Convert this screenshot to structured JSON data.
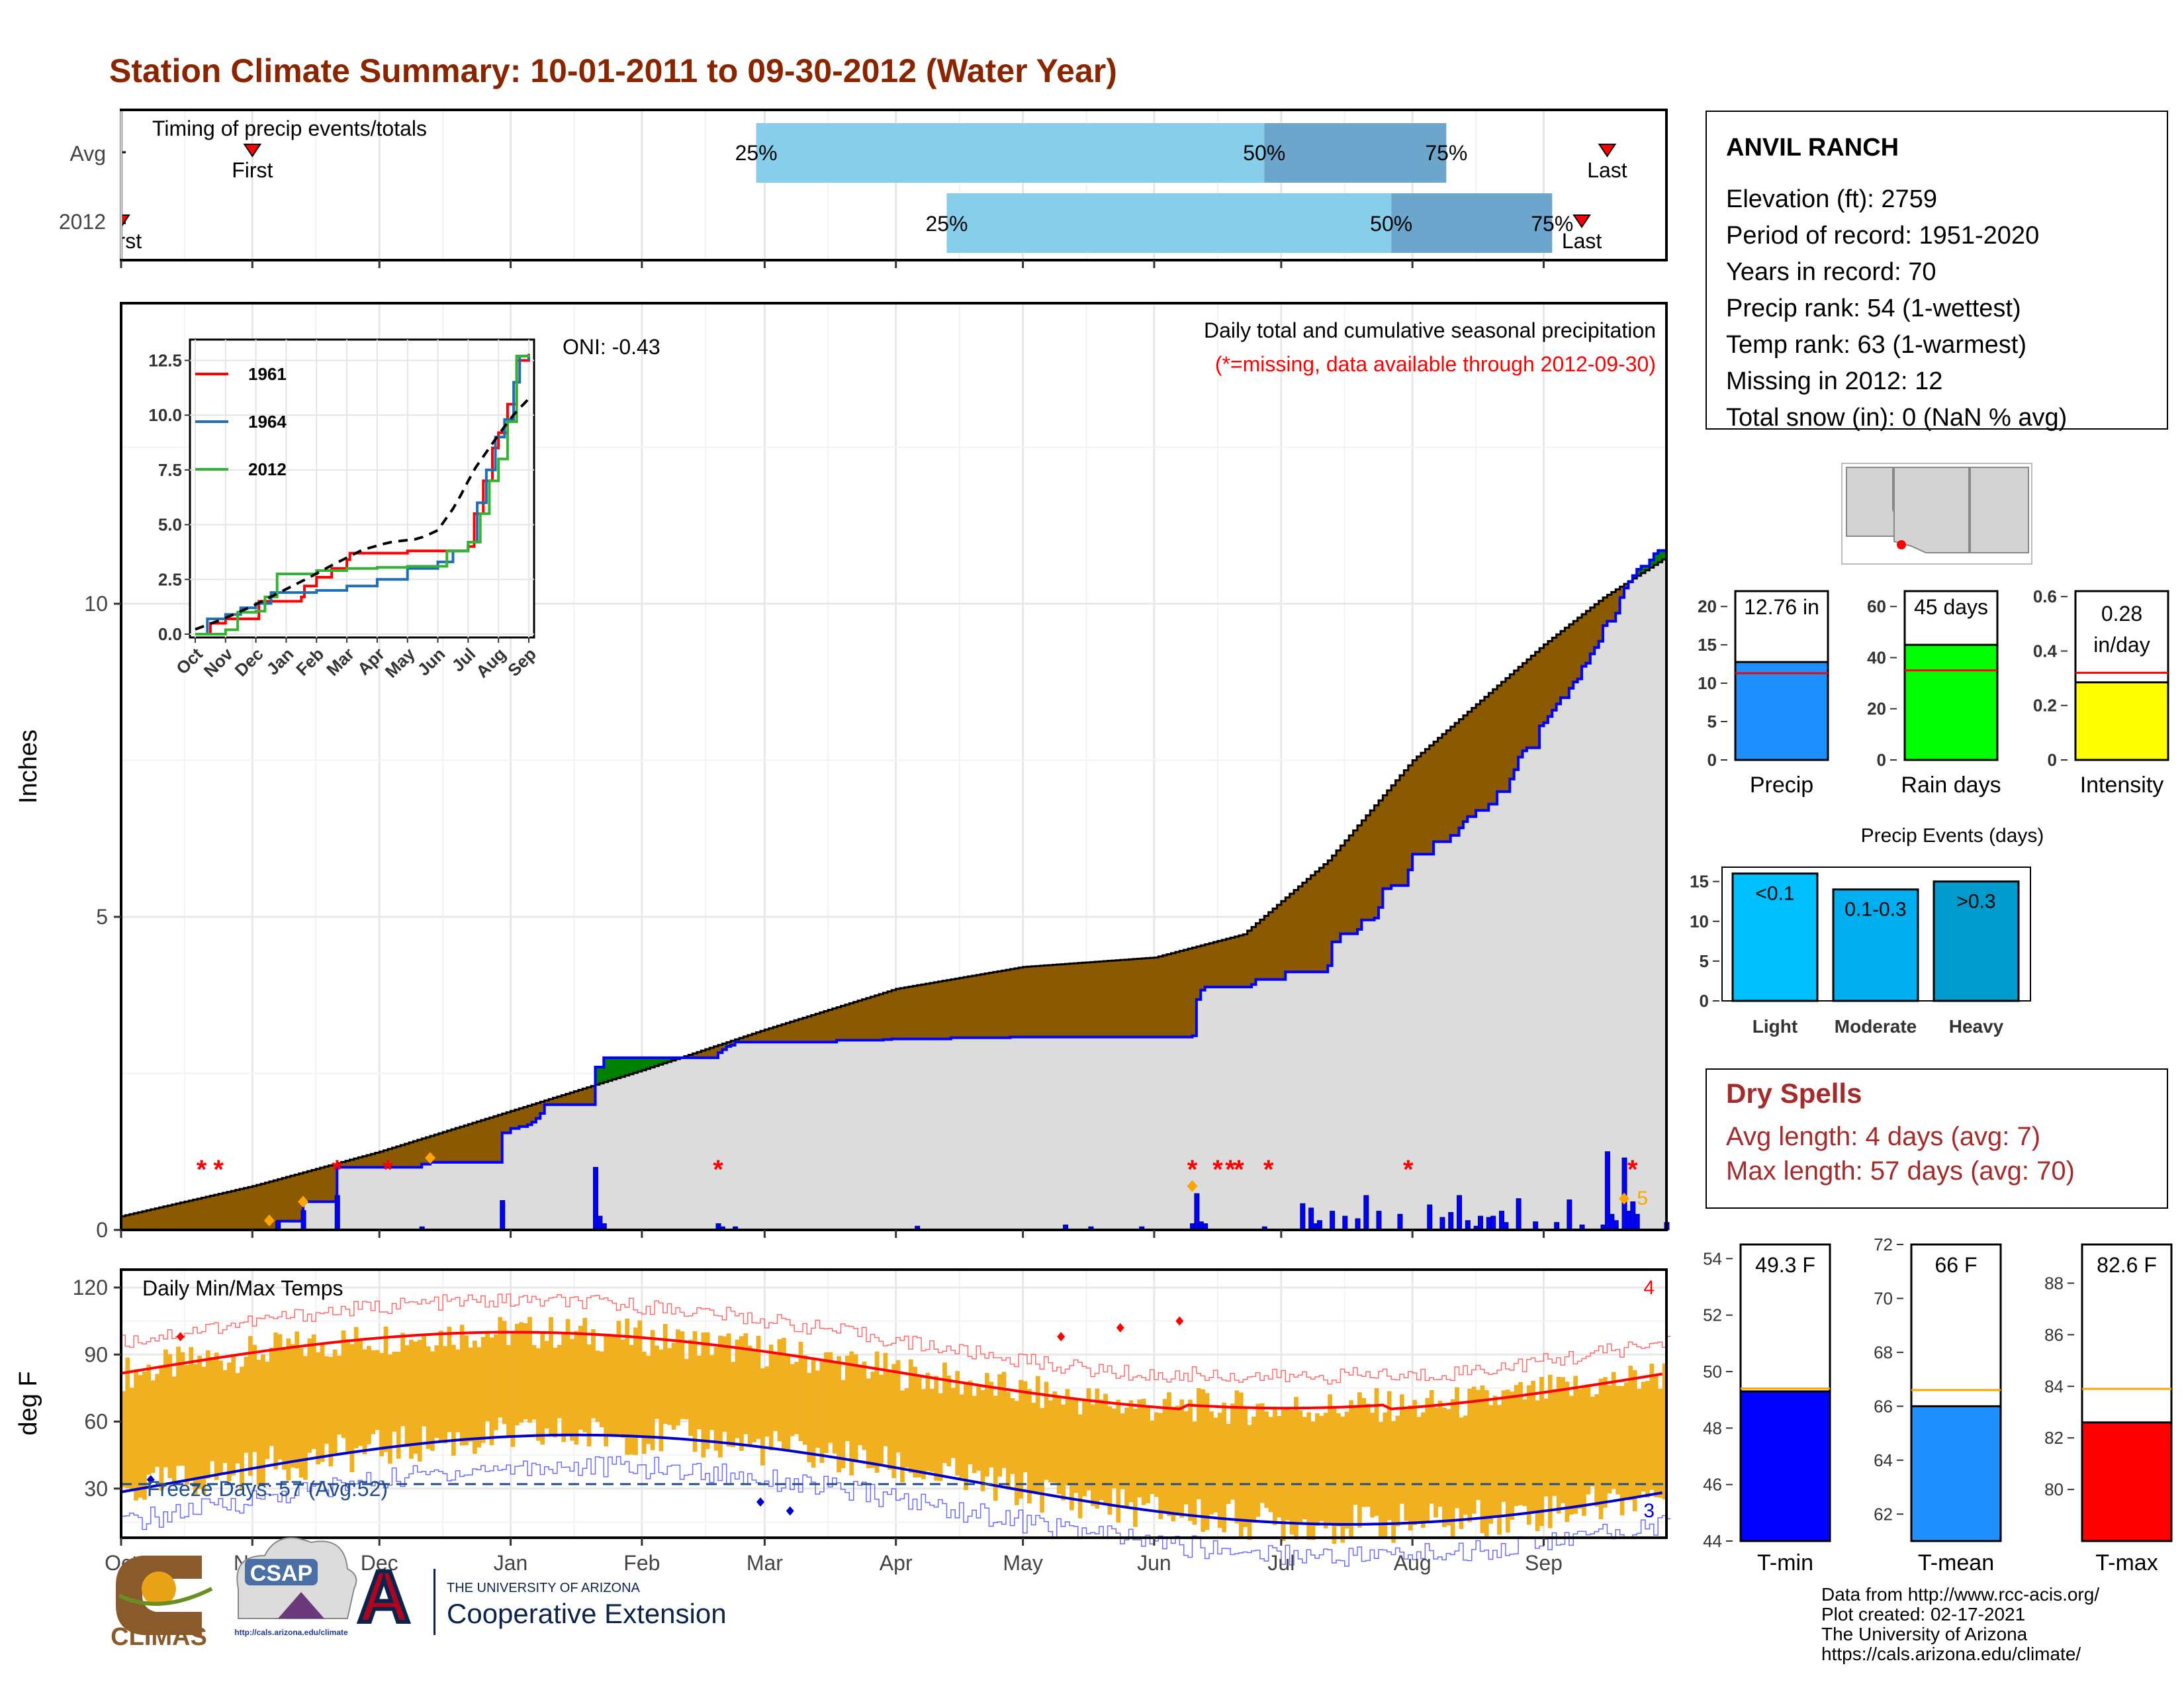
{
  "title": "Station Climate Summary: 10-01-2011 to 09-30-2012 (Water Year)",
  "colors": {
    "title": "#8B2500",
    "surplus": "#008000",
    "deficit": "#8B5A00",
    "cum_avg_fill": "#DCDCDC",
    "daily_bar": "#0000FF",
    "temp_bar": "#F0B020",
    "tmax_avg": "#FF0000",
    "tmin_avg": "#0000CD",
    "light": "#00BFFF",
    "moderate": "#00AEEF",
    "heavy": "#009ACD"
  },
  "timing_panel": {
    "label": "Timing of precip events/totals",
    "rows": [
      {
        "name": "Avg",
        "first_label": "First",
        "first_day": 31,
        "p25": 150,
        "p50": 270,
        "p75": 313,
        "last_label": "Last",
        "last_day": 351
      },
      {
        "name": "2012",
        "first_label": "First",
        "first_day": 0,
        "p25": 195,
        "p50": 300,
        "p75": 338,
        "last_label": "Last",
        "last_day": 345
      }
    ],
    "p25_label": "25%",
    "p50_label": "50%",
    "p75_label": "75%"
  },
  "precip_panel": {
    "ylabel": "Inches",
    "yticks": [
      0,
      5,
      10
    ],
    "title": "Daily total and cumulative seasonal precipitation",
    "missing_note": "(*=missing, data available through 2012-09-30)",
    "oni": "ONI: -0.43",
    "right_count": "5",
    "missing_stars_days": [
      19,
      23,
      51,
      63,
      141,
      253,
      259,
      262,
      264,
      271,
      304,
      357
    ],
    "cumulative_2012": [
      [
        0,
        0
      ],
      [
        36,
        0
      ],
      [
        37,
        0.14
      ],
      [
        42,
        0.14
      ],
      [
        43,
        0.45
      ],
      [
        50,
        0.45
      ],
      [
        51,
        1.0
      ],
      [
        70,
        1.0
      ],
      [
        71,
        1.05
      ],
      [
        72,
        1.05
      ],
      [
        73,
        1.08
      ],
      [
        89,
        1.08
      ],
      [
        90,
        1.55
      ],
      [
        91,
        1.55
      ],
      [
        92,
        1.62
      ],
      [
        93,
        1.62
      ],
      [
        94,
        1.65
      ],
      [
        95,
        1.65
      ],
      [
        96,
        1.68
      ],
      [
        97,
        1.72
      ],
      [
        98,
        1.78
      ],
      [
        99,
        1.86
      ],
      [
        100,
        2.0
      ],
      [
        111,
        2.0
      ],
      [
        112,
        2.6
      ],
      [
        113,
        2.6
      ],
      [
        114,
        2.75
      ],
      [
        140,
        2.75
      ],
      [
        141,
        2.83
      ],
      [
        142,
        2.88
      ],
      [
        143,
        2.93
      ],
      [
        144,
        2.95
      ],
      [
        145,
        3.0
      ],
      [
        152,
        3.0
      ],
      [
        153,
        3.0
      ],
      [
        168,
        3.0
      ],
      [
        169,
        3.03
      ],
      [
        180,
        3.04
      ],
      [
        182,
        3.05
      ],
      [
        196,
        3.07
      ],
      [
        210,
        3.08
      ],
      [
        228,
        3.08
      ],
      [
        252,
        3.08
      ],
      [
        253,
        3.1
      ],
      [
        254,
        3.68
      ],
      [
        255,
        3.83
      ],
      [
        256,
        3.88
      ],
      [
        267,
        3.92
      ],
      [
        268,
        4.0
      ],
      [
        275,
        4.12
      ],
      [
        285,
        4.22
      ],
      [
        286,
        4.6
      ],
      [
        287,
        4.6
      ],
      [
        288,
        4.73
      ],
      [
        290,
        4.73
      ],
      [
        292,
        4.8
      ],
      [
        293,
        4.95
      ],
      [
        296,
        4.98
      ],
      [
        297,
        5.15
      ],
      [
        298,
        5.45
      ],
      [
        300,
        5.5
      ],
      [
        304,
        5.75
      ],
      [
        305,
        6.0
      ],
      [
        308,
        6.0
      ],
      [
        310,
        6.2
      ],
      [
        314,
        6.3
      ],
      [
        316,
        6.42
      ],
      [
        317,
        6.52
      ],
      [
        318,
        6.6
      ],
      [
        320,
        6.7
      ],
      [
        323,
        6.8
      ],
      [
        325,
        7.0
      ],
      [
        328,
        7.2
      ],
      [
        329,
        7.35
      ],
      [
        330,
        7.55
      ],
      [
        331,
        7.65
      ],
      [
        332,
        7.7
      ],
      [
        334,
        7.7
      ],
      [
        335,
        8.05
      ],
      [
        336,
        8.1
      ],
      [
        337,
        8.2
      ],
      [
        338,
        8.3
      ],
      [
        339,
        8.4
      ],
      [
        340,
        8.5
      ],
      [
        342,
        8.65
      ],
      [
        343,
        8.75
      ],
      [
        344,
        8.8
      ],
      [
        345,
        9.0
      ],
      [
        346,
        9.05
      ],
      [
        347,
        9.2
      ],
      [
        348,
        9.3
      ],
      [
        349,
        9.4
      ],
      [
        350,
        9.65
      ],
      [
        351,
        9.72
      ],
      [
        353,
        9.85
      ],
      [
        354,
        10.1
      ],
      [
        355,
        10.25
      ],
      [
        356,
        10.35
      ],
      [
        357,
        10.45
      ],
      [
        358,
        10.55
      ],
      [
        359,
        10.6
      ],
      [
        361,
        10.7
      ],
      [
        362,
        10.8
      ],
      [
        363,
        10.85
      ],
      [
        365,
        10.85
      ]
    ],
    "daily_bars": [
      [
        37,
        0.14
      ],
      [
        43,
        0.31
      ],
      [
        51,
        0.55
      ],
      [
        71,
        0.05
      ],
      [
        90,
        0.47
      ],
      [
        112,
        1.0
      ],
      [
        113,
        0.22
      ],
      [
        114,
        0.1
      ],
      [
        141,
        0.1
      ],
      [
        142,
        0.05
      ],
      [
        145,
        0.05
      ],
      [
        188,
        0.06
      ],
      [
        223,
        0.08
      ],
      [
        229,
        0.05
      ],
      [
        241,
        0.05
      ],
      [
        253,
        0.1
      ],
      [
        254,
        0.58
      ],
      [
        255,
        0.13
      ],
      [
        256,
        0.1
      ],
      [
        270,
        0.05
      ],
      [
        279,
        0.42
      ],
      [
        281,
        0.35
      ],
      [
        282,
        0.1
      ],
      [
        283,
        0.15
      ],
      [
        286,
        0.3
      ],
      [
        289,
        0.22
      ],
      [
        292,
        0.18
      ],
      [
        294,
        0.55
      ],
      [
        297,
        0.3
      ],
      [
        302,
        0.25
      ],
      [
        309,
        0.4
      ],
      [
        312,
        0.2
      ],
      [
        314,
        0.28
      ],
      [
        316,
        0.55
      ],
      [
        318,
        0.15
      ],
      [
        320,
        0.06
      ],
      [
        321,
        0.22
      ],
      [
        323,
        0.2
      ],
      [
        324,
        0.22
      ],
      [
        326,
        0.3
      ],
      [
        327,
        0.12
      ],
      [
        330,
        0.5
      ],
      [
        334,
        0.13
      ],
      [
        339,
        0.12
      ],
      [
        342,
        0.48
      ],
      [
        345,
        0.08
      ],
      [
        350,
        0.08
      ],
      [
        351,
        1.25
      ],
      [
        352,
        0.25
      ],
      [
        353,
        0.15
      ],
      [
        355,
        1.15
      ],
      [
        356,
        0.3
      ],
      [
        357,
        0.45
      ],
      [
        358,
        0.25
      ],
      [
        365,
        0.12
      ]
    ],
    "diamonds_days": [
      35,
      43,
      73,
      253,
      355
    ],
    "diamonds_y": [
      0.15,
      0.45,
      1.15,
      0.7,
      0.5
    ]
  },
  "inset_chart": {
    "yticks": [
      "12.5",
      "10.0",
      "7.5",
      "5.0",
      "2.5",
      "0.0"
    ],
    "months": [
      "Oct",
      "Nov",
      "Dec",
      "Jan",
      "Feb",
      "Mar",
      "Apr",
      "May",
      "Jun",
      "Jul",
      "Aug",
      "Sep"
    ],
    "legend": [
      {
        "name": "1961",
        "color": "#FF0000"
      },
      {
        "name": "1964",
        "color": "#1E6FB5"
      },
      {
        "name": "2012",
        "color": "#32B432"
      }
    ]
  },
  "temp_panel": {
    "label": "Daily Min/Max Temps",
    "ylabel": "deg F",
    "yticks": [
      30,
      60,
      90,
      120
    ],
    "freeze_label": "Freeze Days: 57 (Avg:52)",
    "freeze_line": 32,
    "max_count": "4",
    "min_count": "3"
  },
  "x_months": [
    "Oct",
    "Nov",
    "Dec",
    "Jan",
    "Feb",
    "Mar",
    "Apr",
    "May",
    "Jun",
    "Jul",
    "Aug",
    "Sep"
  ],
  "station_info": {
    "name": "ANVIL RANCH",
    "lines": [
      "Elevation (ft): 2759",
      "Period of record: 1951-2020",
      "Years in record: 70",
      "Precip rank: 54 (1-wettest)",
      "Temp rank: 63 (1-warmest)",
      "Missing in 2012: 12",
      "Total snow (in): 0 (NaN % avg)"
    ]
  },
  "summary_bars": [
    {
      "label": "Precip",
      "value_label": "12.76 in",
      "value": 12.76,
      "avg": 11.3,
      "ymax": 22,
      "ticks": [
        0,
        5,
        10,
        15,
        20
      ],
      "color": "#1E90FF"
    },
    {
      "label": "Rain days",
      "value_label": "45 days",
      "value": 45,
      "avg": 35,
      "ymax": 66,
      "ticks": [
        0,
        20,
        40,
        60
      ],
      "color": "#00FF00"
    },
    {
      "label": "Intensity",
      "value_label_1": "0.28",
      "value_label_2": "in/day",
      "value": 0.285,
      "avg": 0.32,
      "ymax": 0.62,
      "ticks": [
        0.0,
        0.2,
        0.4,
        0.6
      ],
      "color": "#FFFF00"
    }
  ],
  "precip_events": {
    "title": "Precip Events (days)",
    "ticks": [
      0,
      5,
      10,
      15
    ],
    "bars": [
      {
        "label": "Light",
        "value": 16,
        "inside": "<0.1"
      },
      {
        "label": "Moderate",
        "value": 14,
        "inside": "0.1-0.3"
      },
      {
        "label": "Heavy",
        "value": 15,
        "inside": ">0.3"
      }
    ]
  },
  "dry_spells": {
    "title": "Dry Spells",
    "avg_line": "Avg length: 4 days (avg: 7)",
    "max_line": "Max length: 57 days (avg: 70)"
  },
  "temp_bars": [
    {
      "label": "T-min",
      "value_label": "49.3 F",
      "value": 49.3,
      "avg": 49.4,
      "ymin": 44,
      "ymax": 54.5,
      "ticks": [
        44,
        46,
        48,
        50,
        52,
        54
      ],
      "color": "#0000FF"
    },
    {
      "label": "T-mean",
      "value_label": "66 F",
      "value": 66.0,
      "avg": 66.6,
      "ymin": 61,
      "ymax": 72,
      "ticks": [
        62,
        64,
        66,
        68,
        70,
        72
      ],
      "color": "#1E90FF"
    },
    {
      "label": "T-max",
      "value_label": "82.6 F",
      "value": 82.6,
      "avg": 83.9,
      "ymin": 78,
      "ymax": 89.5,
      "ticks": [
        80,
        82,
        84,
        86,
        88
      ],
      "color": "#FF0000"
    }
  ],
  "footer": {
    "lines": [
      "Data from http://www.rcc-acis.org/",
      "Plot created: 02-17-2021",
      "The University of Arizona",
      "https://cals.arizona.edu/climate/"
    ],
    "climas": "CLIMAS",
    "csap": "CSAP",
    "csap_url": "http://cals.arizona.edu/climate",
    "ua_small": "THE UNIVERSITY OF ARIZONA",
    "ua_big": "Cooperative Extension",
    "ua_letter": "A"
  }
}
